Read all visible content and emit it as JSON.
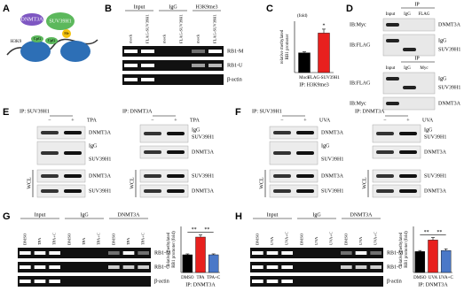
{
  "panels": {
    "A": {
      "letter": "A",
      "labels": [
        "DNMT3A",
        "SUV39H1",
        "H3K9",
        "CpG",
        "CpG",
        "Me"
      ]
    },
    "B": {
      "letter": "B",
      "groups": [
        "Input",
        "IgG",
        "H3K9me3"
      ],
      "lanes": [
        "mock",
        "FLAG-SUV39H1",
        "mock",
        "FLAG-SUV39H1",
        "mock",
        "FLAG-SUV39H1"
      ],
      "rows": [
        "RB1-M",
        "RB1-U",
        "β-actin"
      ]
    },
    "C": {
      "letter": "C",
      "chart": {
        "type": "bar",
        "ylabel": [
          "relative methylated",
          "RB1 promoter"
        ],
        "unit": "(fold)",
        "categories": [
          "Mock",
          "FLAG-SUV39H1"
        ],
        "values": [
          1,
          2
        ],
        "errors": [
          0.05,
          0.2
        ],
        "colors": [
          "#000000",
          "#e8201e"
        ],
        "significance": [
          "*"
        ],
        "xlabel": "IP: H3K9me3",
        "ylim": [
          0,
          2.6
        ]
      }
    },
    "D": {
      "letter": "D",
      "blocks": [
        {
          "ip": "IP",
          "lanes": [
            "Input",
            "IgG",
            "FLAG"
          ],
          "rows": [
            {
              "ib": "IB:Myc",
              "labels": [
                "DNMT3A"
              ]
            },
            {
              "ib": "IB:FLAG",
              "labels": [
                "IgG",
                "SUV39H1"
              ]
            }
          ]
        },
        {
          "ip": "IP",
          "lanes": [
            "Input",
            "IgG",
            "Myc"
          ],
          "rows": [
            {
              "ib": "IB:FLAG",
              "labels": [
                "IgG",
                "SUV39H1"
              ]
            },
            {
              "ib": "IB:Myc",
              "labels": [
                "DNMT3A"
              ]
            }
          ]
        }
      ]
    },
    "E": {
      "letter": "E",
      "treatment": "TPA",
      "signs": [
        "−",
        "+"
      ],
      "left": {
        "ip": "IP: SUV39H1",
        "rows": [
          "DNMT3A",
          "IgG",
          "SUV39H1",
          "DNMT3A",
          "SUV39H1"
        ],
        "wcl": "WCL"
      },
      "right": {
        "ip": "IP: DNMT3A",
        "rows": [
          "IgG",
          "SUV39H1",
          "DNMT3A",
          "SUV39H1",
          "DNMT3A"
        ],
        "wcl": "WCL"
      }
    },
    "F": {
      "letter": "F",
      "treatment": "UVA",
      "signs": [
        "−",
        "+"
      ],
      "left": {
        "ip": "IP: SUV39H1",
        "rows": [
          "DNMT3A",
          "IgG",
          "SUV39H1",
          "DNMT3A",
          "SUV39H1"
        ],
        "wcl": "WCL"
      },
      "right": {
        "ip": "IP: DNMT3A",
        "rows": [
          "IgG",
          "SUV39H1",
          "DNMT3A",
          "SUV39H1",
          "DNMT3A"
        ],
        "wcl": "WCL"
      }
    },
    "G": {
      "letter": "G",
      "groups": [
        "Input",
        "IgG",
        "DNMT3A"
      ],
      "lanes": [
        "DMSO",
        "TPA",
        "TPA+C",
        "DMSO",
        "TPA",
        "TPA+C",
        "DMSO",
        "TPA",
        "TPA+C"
      ],
      "rows": [
        "RB1-M",
        "RB1-U",
        "β-actin"
      ],
      "chart": {
        "type": "bar",
        "ylabel": [
          "relative methylated",
          "RB1 promoter (fold)"
        ],
        "categories": [
          "DMSO",
          "TPA",
          "TPA+C"
        ],
        "values": [
          1,
          2,
          1
        ],
        "errors": [
          0.05,
          0.12,
          0.05
        ],
        "colors": [
          "#000000",
          "#e8201e",
          "#4a78c8"
        ],
        "significance": [
          "**",
          "**"
        ],
        "xlabel": "IP: DNMT3A",
        "ylim": [
          0,
          2.6
        ]
      }
    },
    "H": {
      "letter": "H",
      "groups": [
        "Input",
        "IgG",
        "DNMT3A"
      ],
      "lanes": [
        "DMSO",
        "UVA",
        "UVA+C",
        "DMSO",
        "UVA",
        "UVA+C",
        "DMSO",
        "UVA",
        "UVA+C"
      ],
      "rows": [
        "RB1-M",
        "RB1-U",
        "β-actin"
      ],
      "chart": {
        "type": "bar",
        "ylabel": [
          "relative methylated",
          "RB1 promoter (fold)"
        ],
        "categories": [
          "DMSO",
          "UVA",
          "UVA+C"
        ],
        "values": [
          1,
          1.55,
          1.05
        ],
        "errors": [
          0.05,
          0.12,
          0.08
        ],
        "colors": [
          "#000000",
          "#e8201e",
          "#4a78c8"
        ],
        "significance": [
          "**",
          "**"
        ],
        "xlabel": "IP: DNMT3A",
        "ylim": [
          0,
          2.2
        ]
      }
    }
  }
}
